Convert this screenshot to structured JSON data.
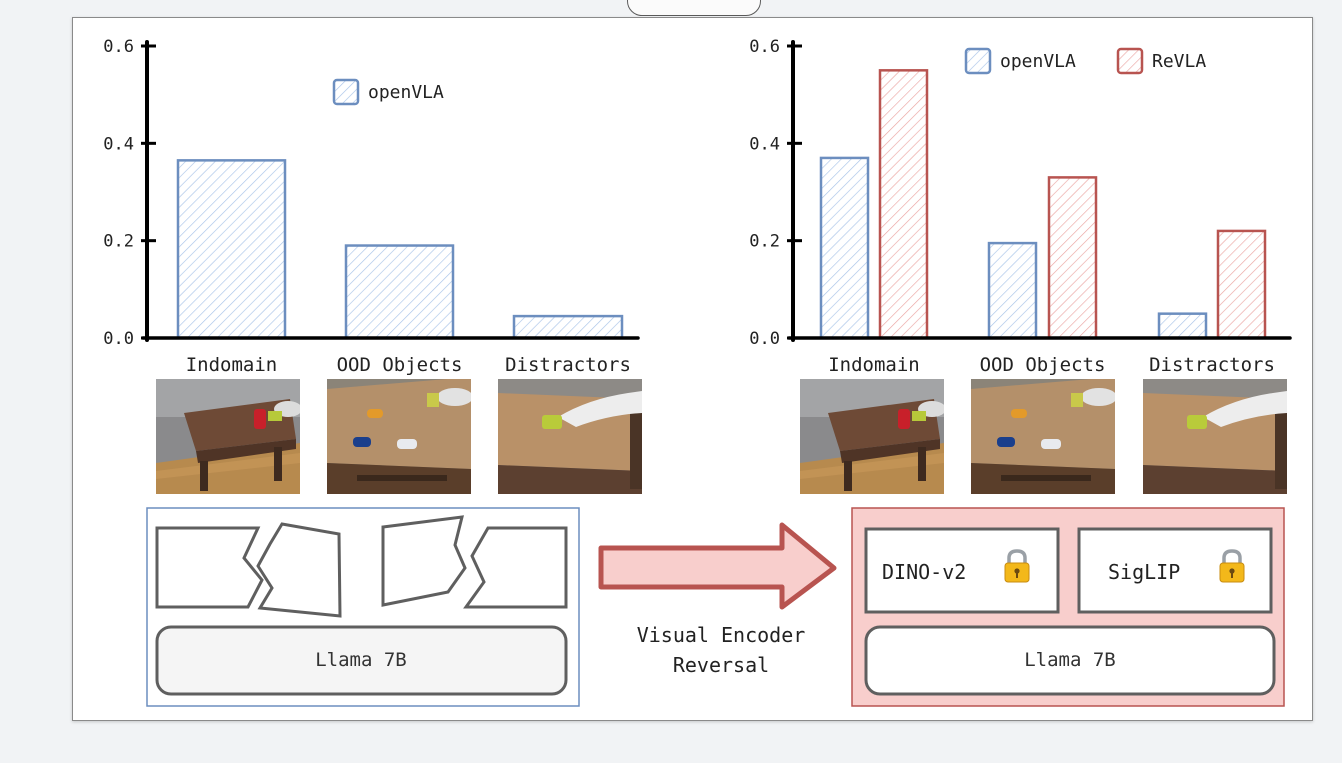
{
  "chart_data": [
    {
      "type": "bar",
      "categories": [
        "Indomain",
        "OOD Objects",
        "Distractors"
      ],
      "series": [
        {
          "name": "openVLA",
          "values": [
            0.365,
            0.19,
            0.045
          ]
        }
      ],
      "y_ticks": [
        "0.0",
        "0.2",
        "0.4",
        "0.6"
      ],
      "ylim": [
        0,
        0.6
      ],
      "grid": false,
      "legend_position": "top-center",
      "bar_style": "hatched"
    },
    {
      "type": "bar",
      "categories": [
        "Indomain",
        "OOD Objects",
        "Distractors"
      ],
      "series": [
        {
          "name": "openVLA",
          "values": [
            0.37,
            0.195,
            0.05
          ]
        },
        {
          "name": "ReVLA",
          "values": [
            0.55,
            0.33,
            0.22
          ]
        }
      ],
      "y_ticks": [
        "0.0",
        "0.2",
        "0.4",
        "0.6"
      ],
      "ylim": [
        0,
        0.6
      ],
      "grid": false,
      "legend_position": "top-right",
      "bar_style": "hatched"
    }
  ],
  "colors": {
    "openvla_stroke": "#6c8ebf",
    "openvla_fill": "#dae8fc",
    "revla_stroke": "#b85450",
    "revla_fill": "#f8cecc",
    "axis": "#000000",
    "block_stroke": "#5f5f5f",
    "llama_fill": "#f5f5f5",
    "arrow_fill": "#f8cecc",
    "arrow_stroke": "#b85450",
    "lock_body": "#f3b81a"
  },
  "scene_images": [
    "indomain-scene",
    "ood-objects-scene",
    "distractors-scene"
  ],
  "architecture": {
    "left_block": {
      "llm_label": "Llama 7B",
      "encoder_style": "broken-puzzle-pieces"
    },
    "arrow_label_line1": "Visual Encoder",
    "arrow_label_line2": "Reversal",
    "right_block": {
      "encoders": [
        {
          "label": "DINO-v2",
          "icon": "lock-icon"
        },
        {
          "label": "SigLIP",
          "icon": "lock-icon"
        }
      ],
      "llm_label": "Llama 7B"
    }
  }
}
